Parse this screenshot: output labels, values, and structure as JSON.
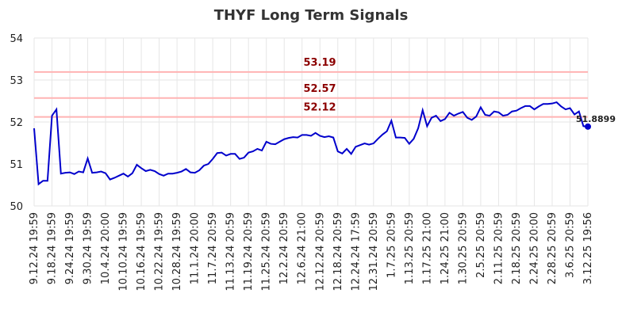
{
  "chart_data": {
    "type": "line",
    "title": "THYF Long Term Signals",
    "categories": [
      "9.12.24 19:59",
      null,
      null,
      null,
      "9.18.24 19:59",
      null,
      null,
      null,
      "9.24.24 19:59",
      null,
      null,
      null,
      "9.30.24 19:59",
      null,
      null,
      null,
      "10.4.24 20:00",
      null,
      null,
      null,
      "10.10.24 19:59",
      null,
      null,
      null,
      "10.16.24 19:59",
      null,
      null,
      null,
      "10.22.24 19:59",
      null,
      null,
      null,
      "10.28.24 19:59",
      null,
      null,
      null,
      "11.1.24 20:00",
      null,
      null,
      null,
      "11.7.24 20:59",
      null,
      null,
      null,
      "11.13.24 20:59",
      null,
      null,
      null,
      "11.19.24 20:59",
      null,
      null,
      null,
      "11.25.24 20:59",
      null,
      null,
      null,
      "12.2.24 20:59",
      null,
      null,
      null,
      "12.6.24 21:00",
      null,
      null,
      null,
      "12.12.24 20:59",
      null,
      null,
      null,
      "12.18.24 20:59",
      null,
      null,
      null,
      "12.24.24 17:59",
      null,
      null,
      null,
      "12.31.24 20:59",
      null,
      null,
      null,
      "1.7.25 20:59",
      null,
      null,
      null,
      "1.13.25 20:59",
      null,
      null,
      null,
      "1.17.25 21:00",
      null,
      null,
      null,
      "1.24.25 21:00",
      null,
      null,
      null,
      "1.30.25 20:59",
      null,
      null,
      null,
      "2.5.25 20:59",
      null,
      null,
      null,
      "2.11.25 20:59",
      null,
      null,
      null,
      "2.18.25 20:59",
      null,
      null,
      null,
      "2.24.25 20:00",
      null,
      null,
      null,
      "2.28.25 20:59",
      null,
      null,
      null,
      "3.6.25 20:59",
      null,
      null,
      null,
      "3.12.25 19:56"
    ],
    "series": [
      {
        "color": "#0000cc",
        "values": [
          51.85,
          50.52,
          50.6,
          50.6,
          52.15,
          52.3,
          50.77,
          50.79,
          50.8,
          50.76,
          50.82,
          50.8,
          51.13,
          50.79,
          50.8,
          50.82,
          50.78,
          50.63,
          50.67,
          50.72,
          50.77,
          50.7,
          50.78,
          50.98,
          50.9,
          50.83,
          50.86,
          50.83,
          50.76,
          50.72,
          50.77,
          50.77,
          50.79,
          50.82,
          50.88,
          50.8,
          50.79,
          50.85,
          50.96,
          51.0,
          51.12,
          51.26,
          51.27,
          51.2,
          51.24,
          51.24,
          51.12,
          51.15,
          51.27,
          51.3,
          51.36,
          51.32,
          51.53,
          51.48,
          51.47,
          51.53,
          51.59,
          51.62,
          51.64,
          51.63,
          51.69,
          51.69,
          51.67,
          51.74,
          51.67,
          51.64,
          51.66,
          51.63,
          51.3,
          51.25,
          51.36,
          51.24,
          51.41,
          51.45,
          51.49,
          51.46,
          51.49,
          51.6,
          51.7,
          51.78,
          52.03,
          51.63,
          51.63,
          51.62,
          51.48,
          51.6,
          51.85,
          52.28,
          51.9,
          52.1,
          52.15,
          52.02,
          52.07,
          52.22,
          52.15,
          52.2,
          52.24,
          52.1,
          52.05,
          52.13,
          52.35,
          52.17,
          52.15,
          52.25,
          52.23,
          52.15,
          52.17,
          52.25,
          52.27,
          52.33,
          52.38,
          52.38,
          52.3,
          52.37,
          52.43,
          52.43,
          52.44,
          52.47,
          52.37,
          52.3,
          52.33,
          52.18,
          52.25,
          51.9,
          51.8899
        ]
      }
    ],
    "hlines": [
      {
        "value": 53.19,
        "color": "#ffb3b3",
        "label_color": "#8b0000"
      },
      {
        "value": 52.57,
        "color": "#ffb3b3",
        "label_color": "#8b0000"
      },
      {
        "value": 52.12,
        "color": "#ffb3b3",
        "label_color": "#8b0000"
      }
    ],
    "ylim": [
      50,
      54
    ],
    "yticks": [
      50,
      51,
      52,
      53,
      54
    ],
    "grid": true
  }
}
